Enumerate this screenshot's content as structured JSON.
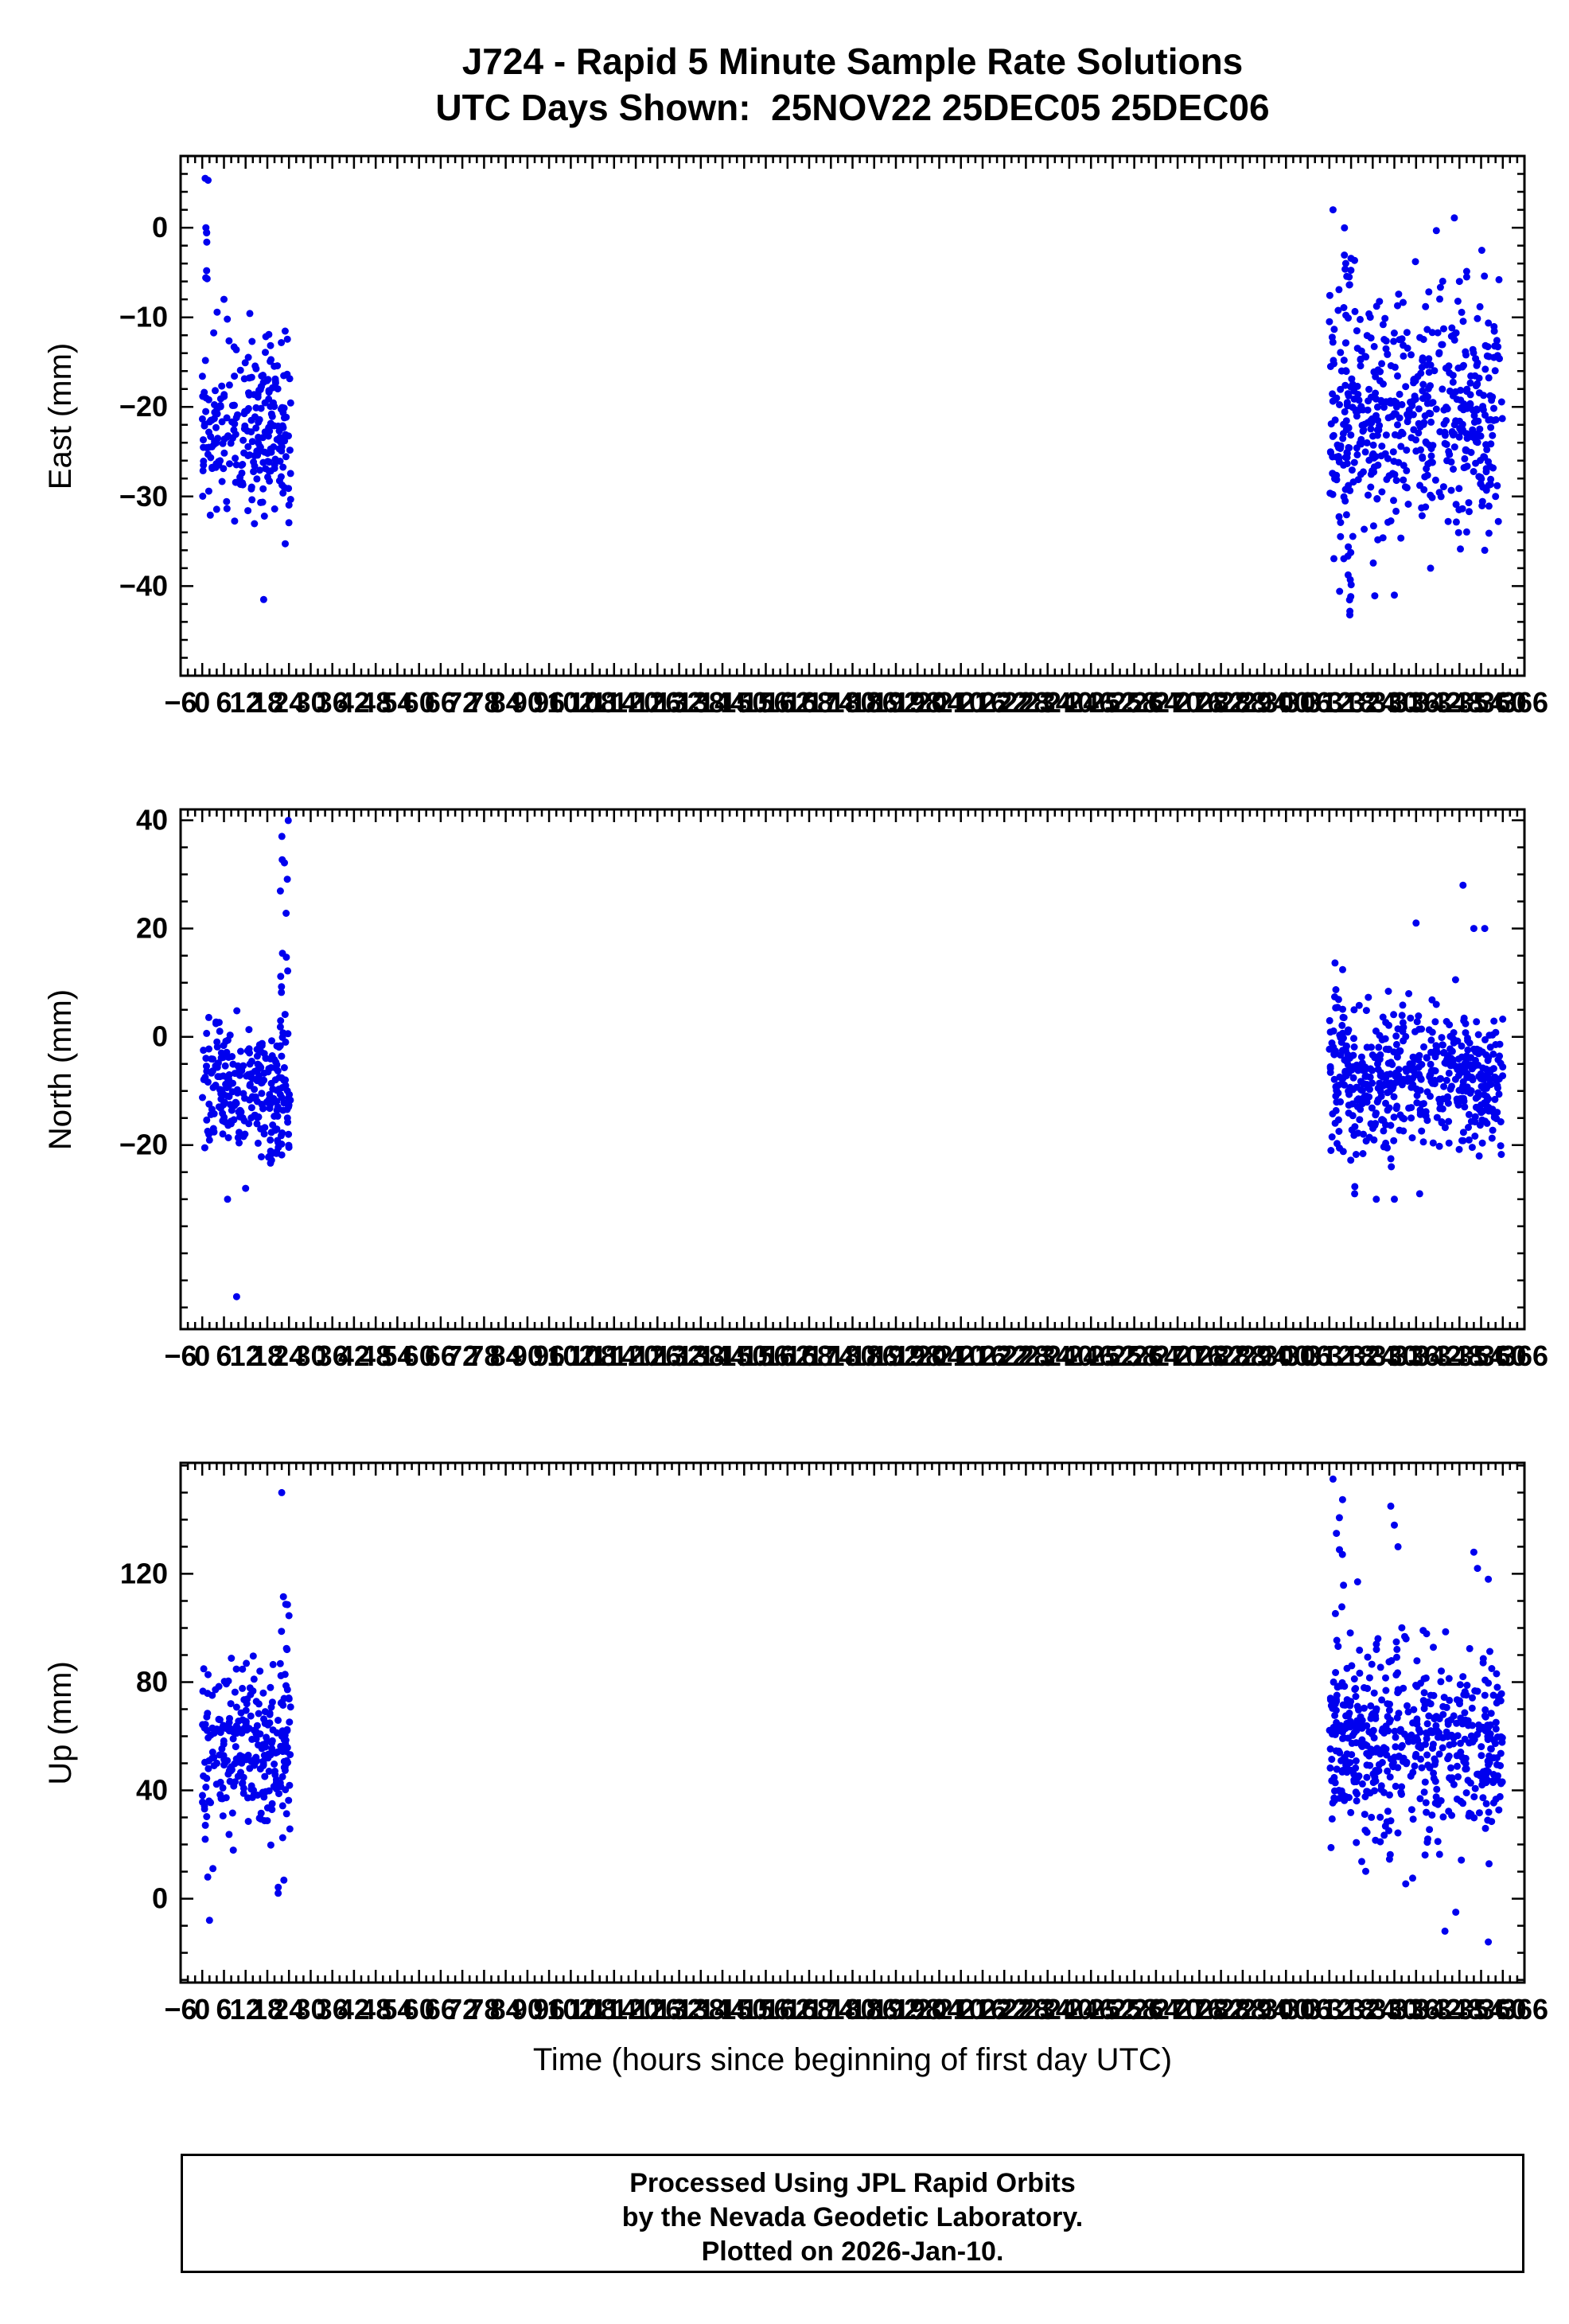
{
  "title": {
    "line1": "J724 - Rapid 5 Minute Sample Rate Solutions",
    "line2": "UTC Days Shown:  25NOV22 25DEC05 25DEC06"
  },
  "xlabel": "Time (hours since beginning of first day UTC)",
  "footer": {
    "line1": "Processed Using JPL Rapid Orbits",
    "line2": "by the Nevada Geodetic Laboratory.",
    "line3": "Plotted on 2026-Jan-10."
  },
  "colors": {
    "point": "#0000ee",
    "axis": "#000000"
  },
  "chart_data": [
    {
      "type": "scatter",
      "key": "east",
      "ylabel": "East (mm)",
      "xlim": [
        -6,
        366
      ],
      "ylim": [
        -50,
        8
      ],
      "x_tick_start": -6,
      "x_tick_end": 366,
      "x_tick_step": 6,
      "x_minor_step": 2,
      "y_ticks": [
        0,
        -10,
        -20,
        -30,
        -40
      ],
      "y_minor_step": 2,
      "grid": false,
      "clusters": [
        {
          "x_range": [
            0,
            24.5
          ],
          "n": 260,
          "y_mean": -23,
          "y_std": 5.2,
          "y_clamp": [
            -38,
            4
          ]
        },
        {
          "x_range": [
            312,
            360
          ],
          "n": 520,
          "y_mean": -21,
          "y_std": 6.5,
          "y_clamp": [
            -43,
            4
          ]
        },
        {
          "x_range": [
            316,
            318.5
          ],
          "n": 30,
          "y_uniform": [
            -45,
            2
          ]
        },
        {
          "x_range": [
            0.5,
            2
          ],
          "n": 6,
          "y_uniform": [
            -8,
            5.5
          ]
        }
      ],
      "outliers": [
        [
          17,
          -41.5
        ],
        [
          0.8,
          5.5
        ],
        [
          1,
          0
        ],
        [
          1.2,
          -4.8
        ],
        [
          6,
          -8
        ],
        [
          313,
          2
        ],
        [
          350,
          -5.5
        ],
        [
          348,
          -6
        ],
        [
          355,
          -36
        ],
        [
          330,
          -41
        ],
        [
          340,
          -38
        ],
        [
          358,
          -30
        ]
      ]
    },
    {
      "type": "scatter",
      "key": "north",
      "ylabel": "North (mm)",
      "xlim": [
        -6,
        366
      ],
      "ylim": [
        -54,
        42
      ],
      "x_tick_start": -6,
      "x_tick_end": 366,
      "x_tick_step": 6,
      "x_minor_step": 2,
      "y_ticks": [
        40,
        20,
        0,
        -20
      ],
      "y_minor_step": 5,
      "grid": false,
      "clusters": [
        {
          "x_range": [
            0,
            24.5
          ],
          "n": 260,
          "y_mean": -10,
          "y_std": 6,
          "y_clamp": [
            -32,
            7
          ]
        },
        {
          "x_range": [
            21.5,
            24
          ],
          "n": 18,
          "y_uniform": [
            -4,
            40
          ]
        },
        {
          "x_range": [
            312,
            360
          ],
          "n": 520,
          "y_mean": -8,
          "y_std": 6.5,
          "y_clamp": [
            -29,
            15
          ]
        },
        {
          "x_range": [
            313,
            316
          ],
          "n": 10,
          "y_uniform": [
            -2,
            14
          ]
        }
      ],
      "outliers": [
        [
          9.5,
          -48
        ],
        [
          7,
          -30
        ],
        [
          12,
          -28
        ],
        [
          349,
          28
        ],
        [
          352,
          20
        ],
        [
          355,
          20
        ],
        [
          336,
          21
        ],
        [
          319,
          -29
        ],
        [
          325,
          -30
        ],
        [
          337,
          -29
        ],
        [
          330,
          -30
        ]
      ]
    },
    {
      "type": "scatter",
      "key": "up",
      "ylabel": "Up (mm)",
      "xlim": [
        -6,
        366
      ],
      "ylim": [
        -31,
        161
      ],
      "x_tick_start": -6,
      "x_tick_end": 366,
      "x_tick_step": 6,
      "x_minor_step": 2,
      "y_ticks": [
        120,
        80,
        40,
        0
      ],
      "y_minor_step": 10,
      "grid": false,
      "clusters": [
        {
          "x_range": [
            0,
            24.5
          ],
          "n": 260,
          "y_mean": 55,
          "y_std": 16,
          "y_clamp": [
            -8,
            102
          ]
        },
        {
          "x_range": [
            21,
            24
          ],
          "n": 12,
          "y_uniform": [
            0,
            120
          ]
        },
        {
          "x_range": [
            312,
            360
          ],
          "n": 520,
          "y_mean": 58,
          "y_std": 18,
          "y_clamp": [
            -15,
            128
          ]
        },
        {
          "x_range": [
            313,
            317
          ],
          "n": 20,
          "y_uniform": [
            35,
            148
          ]
        }
      ],
      "outliers": [
        [
          22,
          150
        ],
        [
          2,
          -8
        ],
        [
          1.5,
          8
        ],
        [
          21,
          2
        ],
        [
          313,
          155
        ],
        [
          329,
          145
        ],
        [
          330,
          138
        ],
        [
          331,
          130
        ],
        [
          352,
          128
        ],
        [
          353,
          122
        ],
        [
          356,
          118
        ],
        [
          344,
          -12
        ],
        [
          356,
          -16
        ],
        [
          347,
          -5
        ]
      ]
    }
  ]
}
